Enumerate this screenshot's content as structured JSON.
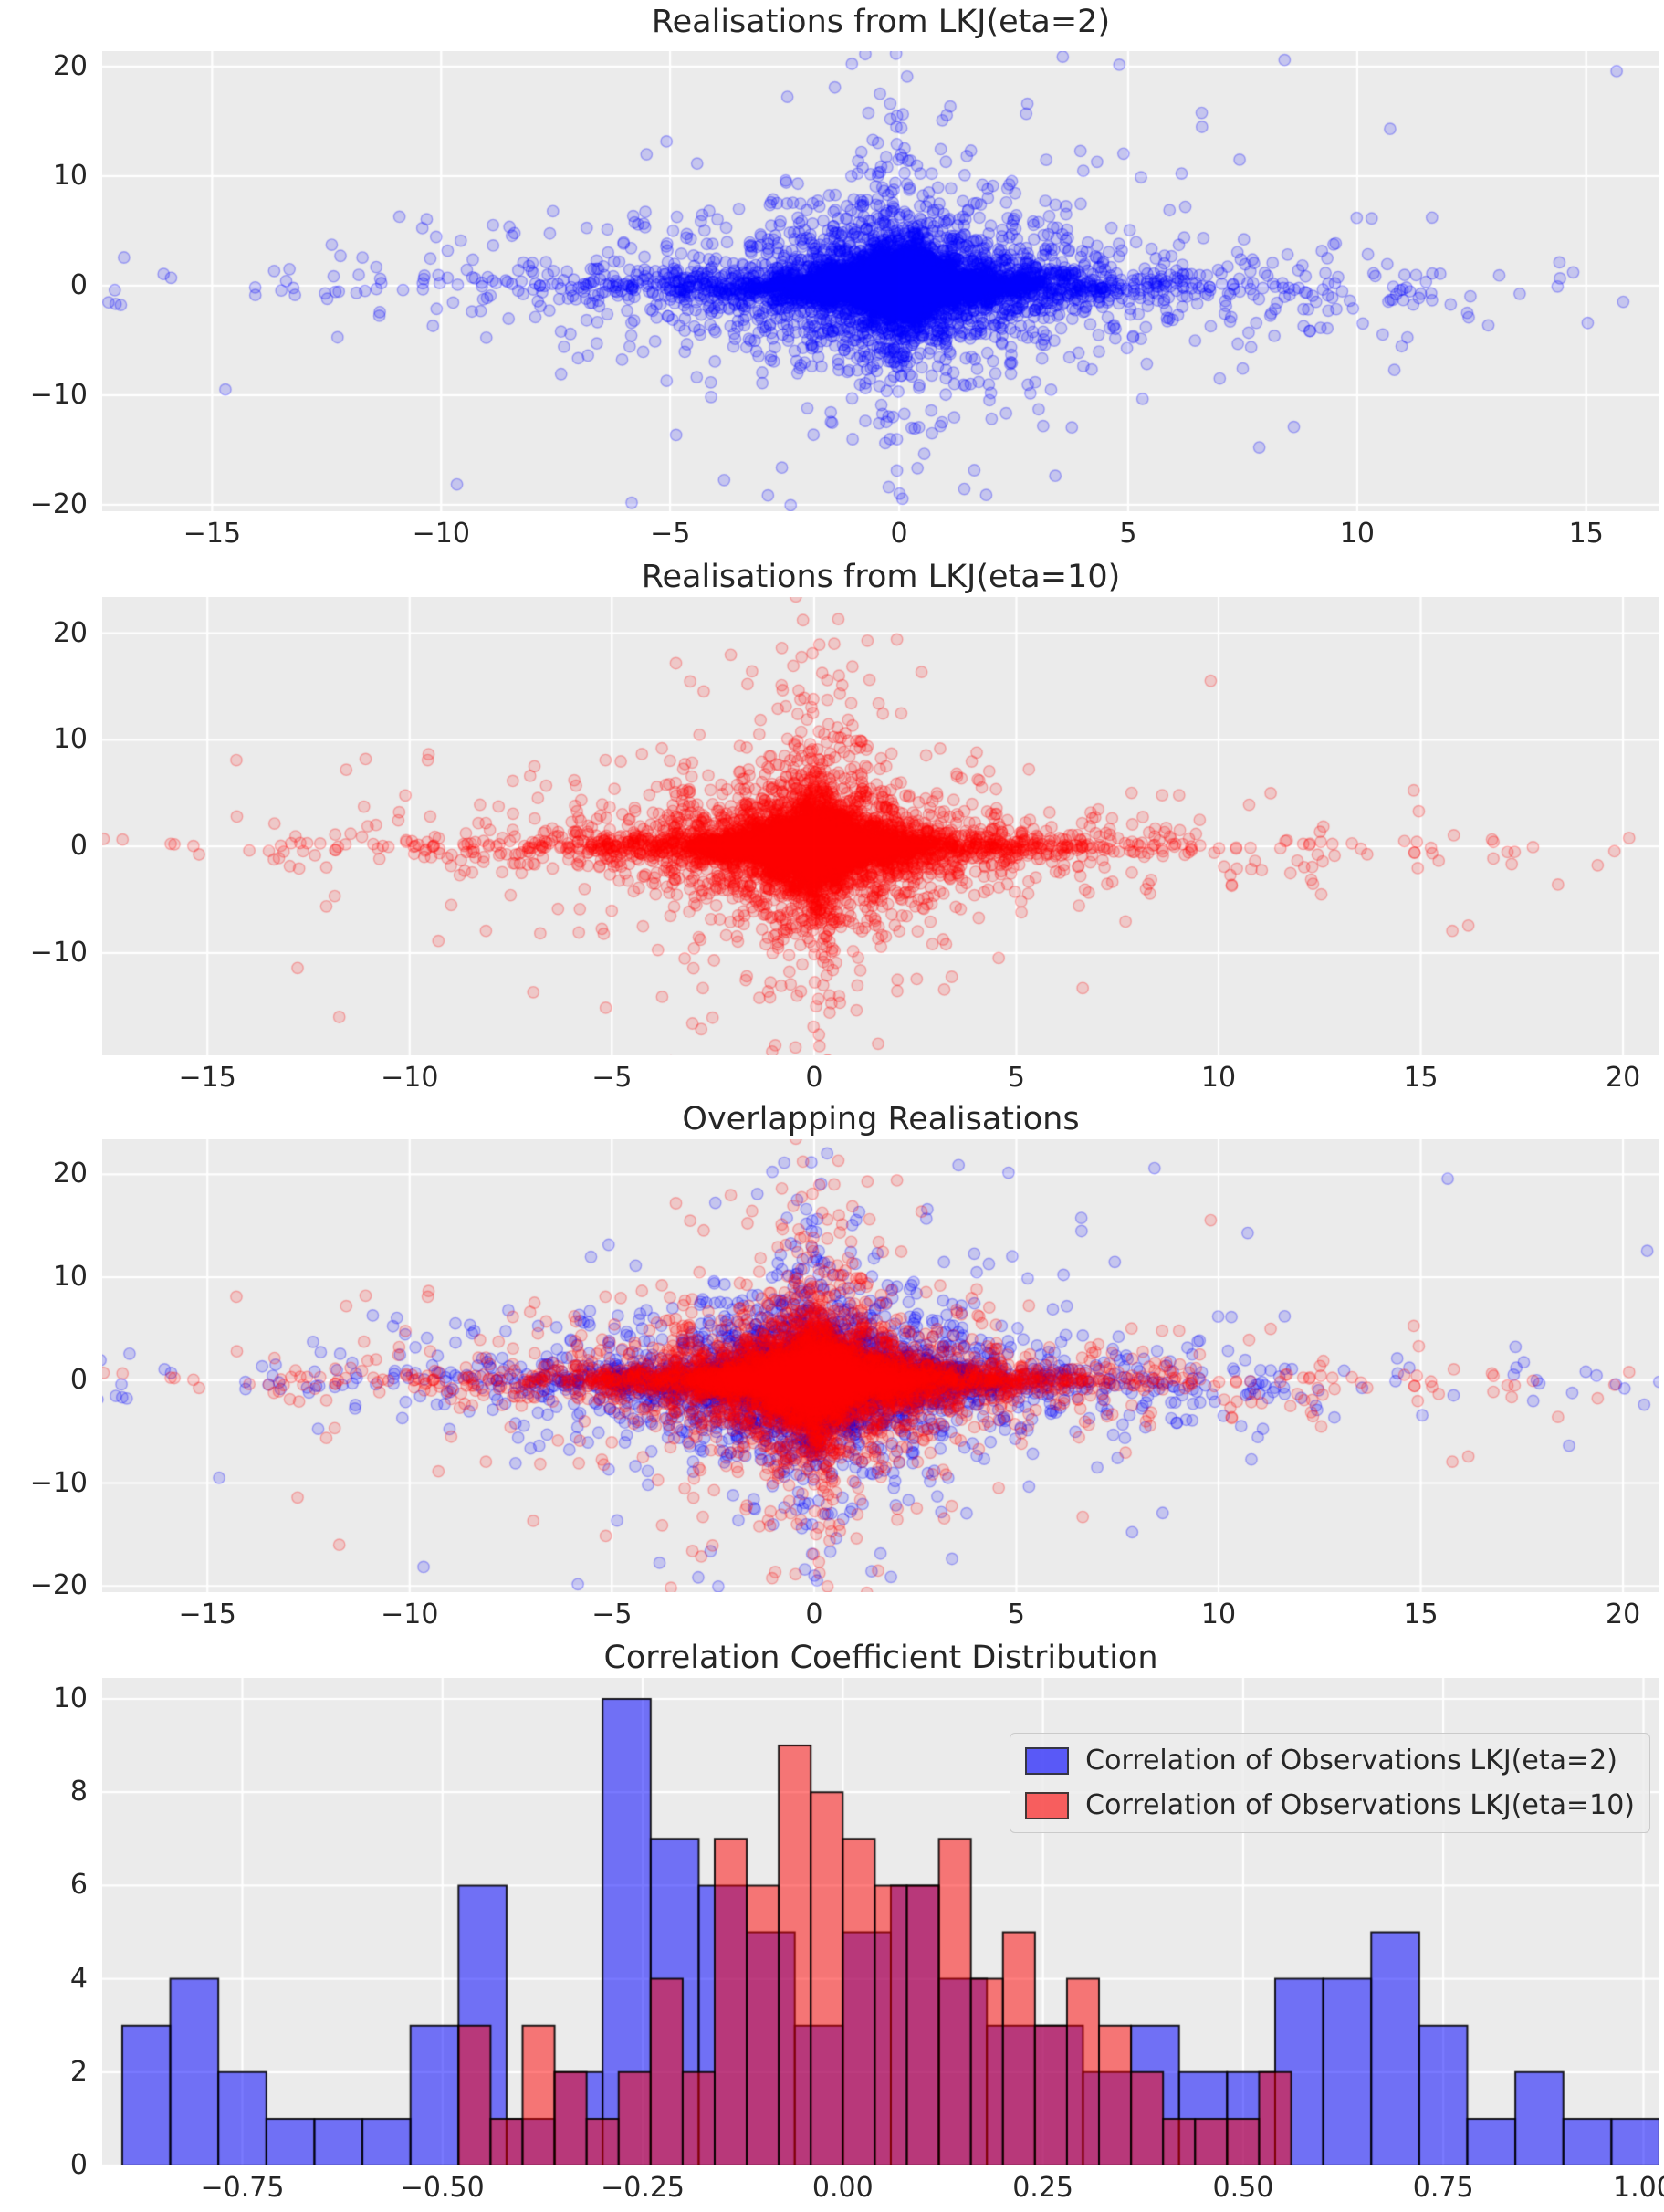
{
  "figure": {
    "background": "#ffffff",
    "axes_background": "#ebebeb",
    "grid_color": "#ffffff",
    "text_color": "#262626"
  },
  "chart_data": [
    {
      "type": "scatter",
      "title": "Realisations from LKJ(eta=2)",
      "color": "#0000ff",
      "alpha": 0.16,
      "edge_alpha": 0.3,
      "xlim": [
        -17.4,
        16.6
      ],
      "ylim": [
        -20.6,
        21.4
      ],
      "xtick_values": [
        -15,
        -10,
        -5,
        0,
        5,
        10,
        15
      ],
      "xtick_labels": [
        "−15",
        "−10",
        "−5",
        "0",
        "5",
        "10",
        "15"
      ],
      "ytick_values": [
        -20,
        -10,
        0,
        10,
        20
      ],
      "ytick_labels": [
        "−20",
        "−10",
        "0",
        "10",
        "20"
      ],
      "grid": true,
      "n_points": 8000,
      "seed": 42,
      "scale_sigma": 0.95,
      "rho_spread": 0.75,
      "point_scale": 1.35,
      "distribution": "heavy-tailed cloud centred at (0,0): dense core |x|<5, |y|<5; horizontal tails to about ±16 with y near 0; vertical tails to about ±19 with x near 0",
      "approx_x_extent": [
        -16,
        15.5
      ],
      "approx_y_extent": [
        -19,
        18.5
      ]
    },
    {
      "type": "scatter",
      "title": "Realisations from LKJ(eta=10)",
      "color": "#ff0000",
      "alpha": 0.15,
      "edge_alpha": 0.28,
      "xlim": [
        -17.6,
        20.9
      ],
      "ylim": [
        -19.6,
        23.4
      ],
      "xtick_values": [
        -15,
        -10,
        -5,
        0,
        5,
        10,
        15,
        20
      ],
      "xtick_labels": [
        "−15",
        "−10",
        "−5",
        "0",
        "5",
        "10",
        "15",
        "20"
      ],
      "ytick_values": [
        -10,
        0,
        10,
        20
      ],
      "ytick_labels": [
        "−10",
        "0",
        "10",
        "20"
      ],
      "grid": true,
      "n_points": 8000,
      "seed": 11,
      "scale_sigma": 0.95,
      "rho_spread": 0.3,
      "point_scale": 1.35,
      "distribution": "heavy-tailed cloud centred at (0,0), correlations concentrated near 0: narrow vertical spike to +22/−18 at x≈0, horizontal band to −16/+20 with y near 0",
      "approx_x_extent": [
        -16,
        20
      ],
      "approx_y_extent": [
        -18,
        22.5
      ]
    },
    {
      "type": "scatter_overlay",
      "title": "Overlapping Realisations",
      "layers": [
        0,
        1
      ],
      "xlim": [
        -17.6,
        20.9
      ],
      "ylim": [
        -20.6,
        23.4
      ],
      "xtick_values": [
        -15,
        -10,
        -5,
        0,
        5,
        10,
        15,
        20
      ],
      "xtick_labels": [
        "−15",
        "−10",
        "−5",
        "0",
        "5",
        "10",
        "15",
        "20"
      ],
      "ytick_values": [
        -20,
        -10,
        0,
        10,
        20
      ],
      "ytick_labels": [
        "−20",
        "−10",
        "0",
        "10",
        "20"
      ],
      "grid": true,
      "distribution": "blue LKJ(eta=2) realisations drawn first, red LKJ(eta=10) realisations drawn on top"
    },
    {
      "type": "histogram",
      "title": "Correlation Coefficient Distribution",
      "xlim": [
        -0.925,
        1.02
      ],
      "ylim": [
        0,
        10.45
      ],
      "xtick_values": [
        -0.75,
        -0.5,
        -0.25,
        0,
        0.25,
        0.5,
        0.75,
        1.0
      ],
      "xtick_labels": [
        "−0.75",
        "−0.50",
        "−0.25",
        "0.00",
        "0.25",
        "0.50",
        "0.75",
        "1.00"
      ],
      "ytick_values": [
        0,
        2,
        4,
        6,
        8,
        10
      ],
      "ytick_labels": [
        "0",
        "2",
        "4",
        "6",
        "8",
        "10"
      ],
      "grid": true,
      "legend_position": "upper right",
      "bar_edge_color": "#000000",
      "series": [
        {
          "name": "Correlation of Observations LKJ(eta=2)",
          "color": "#0000ff",
          "fill_alpha": 0.52,
          "bin_start": -0.9,
          "bin_width": 0.06,
          "counts": [
            3,
            4,
            2,
            1,
            1,
            1,
            3,
            6,
            1,
            2,
            10,
            7,
            6,
            5,
            3,
            5,
            6,
            4,
            3,
            3,
            2,
            3,
            2,
            2,
            4,
            4,
            5,
            3,
            1,
            2,
            1,
            1
          ]
        },
        {
          "name": "Correlation of Observations LKJ(eta=10)",
          "color": "#ff0000",
          "fill_alpha": 0.5,
          "bin_start": -0.48,
          "bin_width": 0.04,
          "counts": [
            3,
            1,
            3,
            2,
            1,
            2,
            4,
            2,
            7,
            6,
            9,
            8,
            7,
            6,
            6,
            7,
            4,
            5,
            3,
            4,
            3,
            2,
            1,
            1,
            1,
            2
          ]
        }
      ]
    }
  ]
}
